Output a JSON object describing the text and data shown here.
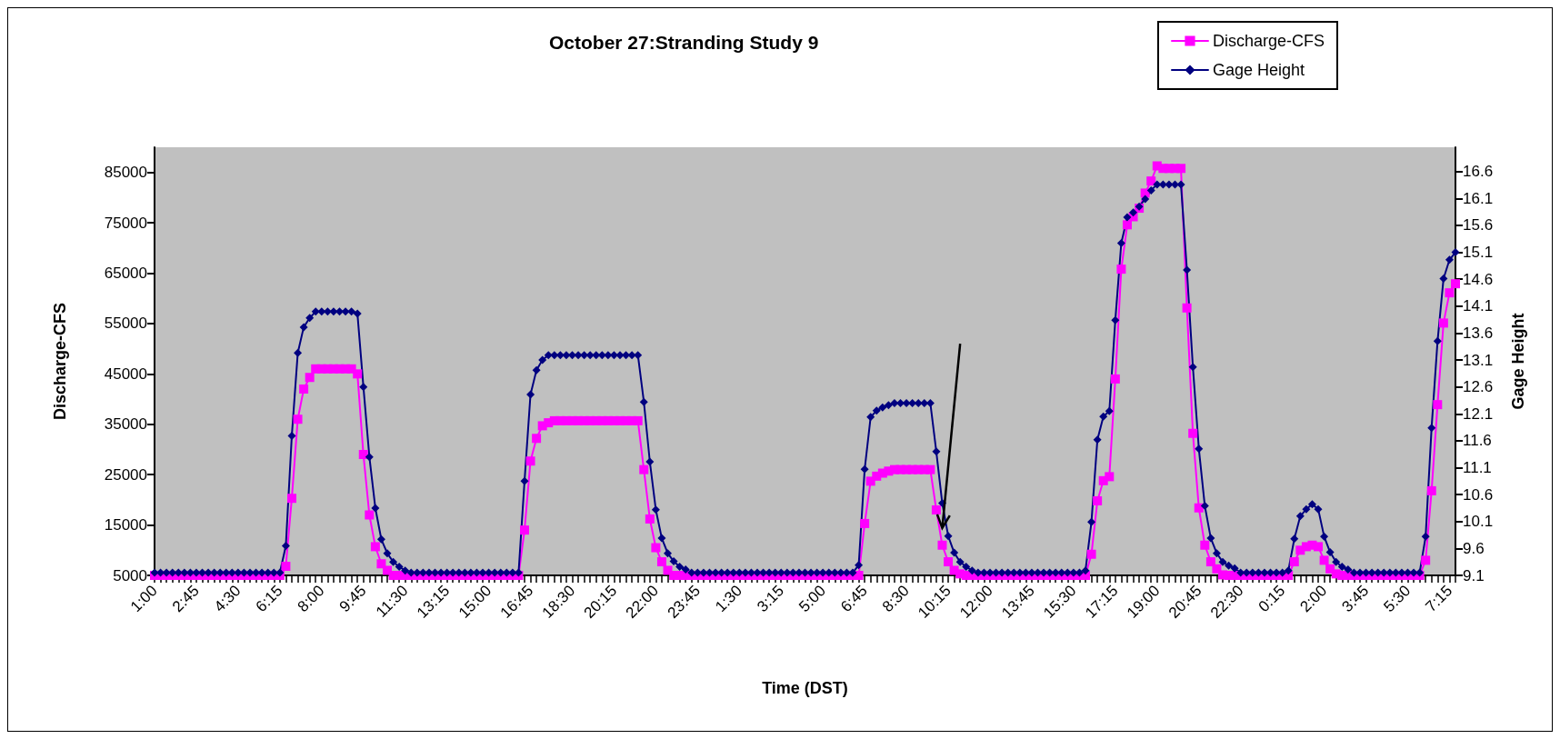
{
  "chart_data": {
    "type": "line",
    "title": "October 27:Stranding Study 9",
    "xlabel": "Time (DST)",
    "ylabel": "Discharge-CFS",
    "y2label": "Gage Height",
    "categories": [
      "1:00",
      null,
      null,
      null,
      null,
      null,
      null,
      "2:45",
      null,
      null,
      null,
      null,
      null,
      null,
      "4:30",
      null,
      null,
      null,
      null,
      null,
      null,
      "6:15",
      null,
      null,
      null,
      null,
      null,
      null,
      "8:00",
      null,
      null,
      null,
      null,
      null,
      null,
      "9:45",
      null,
      null,
      null,
      null,
      null,
      null,
      "11:30",
      null,
      null,
      null,
      null,
      null,
      null,
      "13:15",
      null,
      null,
      null,
      null,
      null,
      null,
      "15:00",
      null,
      null,
      null,
      null,
      null,
      null,
      "16:45",
      null,
      null,
      null,
      null,
      null,
      null,
      "18:30",
      null,
      null,
      null,
      null,
      null,
      null,
      "20:15",
      null,
      null,
      null,
      null,
      null,
      null,
      "22:00",
      null,
      null,
      null,
      null,
      null,
      null,
      "23:45",
      null,
      null,
      null,
      null,
      null,
      null,
      "1:30",
      null,
      null,
      null,
      null,
      null,
      null,
      "3:15",
      null,
      null,
      null,
      null,
      null,
      null,
      "5:00",
      null,
      null,
      null,
      null,
      null,
      null,
      "6:45",
      null,
      null,
      null,
      null,
      null,
      null,
      "8:30",
      null,
      null,
      null,
      null,
      null,
      null,
      "10:15",
      null,
      null,
      null,
      null,
      null,
      null,
      "12:00",
      null,
      null,
      null,
      null,
      null,
      null,
      "13:45",
      null,
      null,
      null,
      null,
      null,
      null,
      "15:30",
      null,
      null,
      null,
      null,
      null,
      null,
      "17:15",
      null,
      null,
      null,
      null,
      null,
      null,
      "19:00",
      null,
      null,
      null,
      null,
      null,
      null,
      "20:45",
      null,
      null,
      null,
      null,
      null,
      null,
      "22:30",
      null,
      null,
      null,
      null,
      null,
      null,
      "0:15",
      null,
      null,
      null,
      null,
      null,
      null,
      "2:00",
      null,
      null,
      null,
      null,
      null,
      null,
      "3:45",
      null,
      null,
      null,
      null,
      null,
      null,
      "5:30",
      null,
      null,
      null,
      null,
      null,
      null,
      "7:15",
      null
    ],
    "series": [
      {
        "name": "Discharge-CFS",
        "color": "#ff00ff",
        "marker": "square",
        "values": [
          5000,
          5000,
          5000,
          5000,
          5000,
          5000,
          5000,
          5000,
          5000,
          5000,
          5000,
          5000,
          5000,
          5000,
          5000,
          5000,
          5000,
          5000,
          5000,
          5000,
          5000,
          5000,
          6800,
          20300,
          36000,
          42000,
          44300,
          46000,
          46000,
          46000,
          46000,
          46000,
          46000,
          46000,
          45000,
          29000,
          17000,
          10700,
          7300,
          6000,
          5000,
          5000,
          5000,
          5000,
          5000,
          5000,
          5000,
          5000,
          5000,
          5000,
          5000,
          5000,
          5000,
          5000,
          5000,
          5000,
          5000,
          5000,
          5000,
          5000,
          5000,
          5000,
          14000,
          27700,
          32200,
          34700,
          35300,
          35700,
          35700,
          35700,
          35700,
          35700,
          35700,
          35700,
          35700,
          35700,
          35700,
          35700,
          35700,
          35700,
          35700,
          35700,
          26000,
          16200,
          10500,
          7700,
          6000,
          5000,
          5000,
          5000,
          5000,
          5000,
          5000,
          5000,
          5000,
          5000,
          5000,
          5000,
          5000,
          5000,
          5000,
          5000,
          5000,
          5000,
          5000,
          5000,
          5000,
          5000,
          5000,
          5000,
          5000,
          5000,
          5000,
          5000,
          5000,
          5000,
          5000,
          5000,
          5000,
          15300,
          23700,
          24700,
          25300,
          25700,
          26000,
          26000,
          26000,
          26000,
          26000,
          26000,
          26000,
          18000,
          11000,
          7700,
          6000,
          5300,
          5000,
          5000,
          5000,
          5000,
          5000,
          5000,
          5000,
          5000,
          5000,
          5000,
          5000,
          5000,
          5000,
          5000,
          5000,
          5000,
          5000,
          5000,
          5000,
          5000,
          5000,
          9200,
          19800,
          23800,
          24600,
          44000,
          65800,
          74600,
          76200,
          77900,
          80900,
          83300,
          86300,
          85800,
          85800,
          85800,
          85800,
          58100,
          33200,
          18400,
          11000,
          7700,
          6300,
          5100,
          5000,
          5000,
          5000,
          5000,
          5000,
          5000,
          5000,
          5000,
          5000,
          5000,
          5000,
          7700,
          10000,
          10700,
          11000,
          10700,
          8000,
          6300,
          5300,
          5000,
          5000,
          5000,
          5000,
          5000,
          5000,
          5000,
          5000,
          5000,
          5000,
          5000,
          5000,
          5000,
          5000,
          8000,
          21800,
          38900,
          55100,
          61100,
          62900
        ]
      },
      {
        "name": "Gage Height",
        "color": "#000080",
        "marker": "diamond",
        "axis": "y2",
        "values": [
          9.15,
          9.15,
          9.15,
          9.15,
          9.15,
          9.15,
          9.15,
          9.15,
          9.15,
          9.15,
          9.15,
          9.15,
          9.15,
          9.15,
          9.15,
          9.15,
          9.15,
          9.15,
          9.15,
          9.15,
          9.15,
          9.15,
          9.65,
          11.69,
          13.23,
          13.71,
          13.88,
          14.0,
          14.0,
          14.0,
          14.0,
          14.0,
          14.0,
          14.0,
          13.96,
          12.6,
          11.3,
          10.35,
          9.77,
          9.51,
          9.35,
          9.26,
          9.19,
          9.15,
          9.15,
          9.15,
          9.15,
          9.15,
          9.15,
          9.15,
          9.15,
          9.15,
          9.15,
          9.15,
          9.15,
          9.15,
          9.15,
          9.15,
          9.15,
          9.15,
          9.15,
          9.15,
          10.85,
          12.46,
          12.91,
          13.1,
          13.19,
          13.19,
          13.19,
          13.19,
          13.19,
          13.19,
          13.19,
          13.19,
          13.19,
          13.19,
          13.19,
          13.19,
          13.19,
          13.19,
          13.19,
          13.19,
          12.32,
          11.21,
          10.32,
          9.79,
          9.51,
          9.36,
          9.26,
          9.21,
          9.15,
          9.15,
          9.15,
          9.15,
          9.15,
          9.15,
          9.15,
          9.15,
          9.15,
          9.15,
          9.15,
          9.15,
          9.15,
          9.15,
          9.15,
          9.15,
          9.15,
          9.15,
          9.15,
          9.15,
          9.15,
          9.15,
          9.15,
          9.15,
          9.15,
          9.15,
          9.15,
          9.15,
          9.29,
          11.07,
          12.04,
          12.16,
          12.22,
          12.26,
          12.3,
          12.3,
          12.3,
          12.3,
          12.3,
          12.3,
          12.3,
          11.4,
          10.44,
          9.83,
          9.52,
          9.35,
          9.26,
          9.19,
          9.15,
          9.15,
          9.15,
          9.15,
          9.15,
          9.15,
          9.15,
          9.15,
          9.15,
          9.15,
          9.15,
          9.15,
          9.15,
          9.15,
          9.15,
          9.15,
          9.15,
          9.15,
          9.19,
          10.09,
          11.62,
          12.05,
          12.15,
          13.84,
          15.27,
          15.75,
          15.84,
          15.95,
          16.09,
          16.25,
          16.36,
          16.36,
          16.36,
          16.36,
          16.36,
          14.77,
          12.97,
          11.45,
          10.39,
          9.79,
          9.51,
          9.35,
          9.28,
          9.23,
          9.15,
          9.15,
          9.15,
          9.15,
          9.15,
          9.15,
          9.15,
          9.15,
          9.19,
          9.78,
          10.2,
          10.33,
          10.42,
          10.33,
          9.82,
          9.53,
          9.35,
          9.26,
          9.21,
          9.15,
          9.15,
          9.15,
          9.15,
          9.15,
          9.15,
          9.15,
          9.15,
          9.15,
          9.15,
          9.15,
          9.15,
          9.82,
          11.84,
          13.45,
          14.61,
          14.96,
          15.1
        ]
      }
    ],
    "ylim": [
      5000,
      90000
    ],
    "yticks": [
      5000,
      15000,
      25000,
      35000,
      45000,
      55000,
      65000,
      75000,
      85000
    ],
    "y2lim": [
      9.1,
      17.05
    ],
    "y2ticks": [
      9.1,
      9.6,
      10.1,
      10.6,
      11.1,
      11.6,
      12.1,
      12.6,
      13.1,
      13.6,
      14.1,
      14.6,
      15.1,
      15.6,
      16.1,
      16.6
    ],
    "grid": false,
    "legend": "top right",
    "line_style": "solid"
  }
}
